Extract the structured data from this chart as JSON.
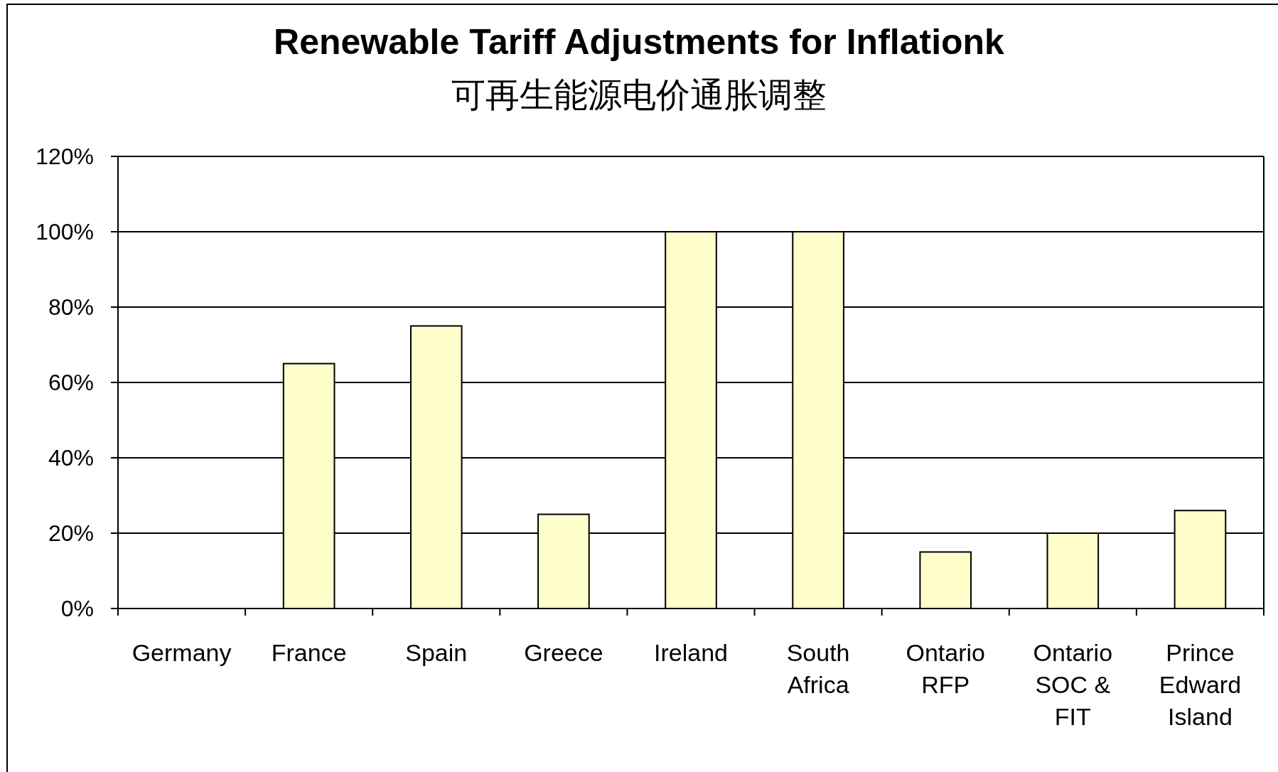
{
  "chart_data": {
    "type": "bar",
    "title": "Renewable Tariff Adjustments for Inflationk",
    "subtitle": "可再生能源电价通胀调整",
    "categories": [
      "Germany",
      "France",
      "Spain",
      "Greece",
      "Ireland",
      "South Africa",
      "Ontario RFP",
      "Ontario SOC & FIT",
      "Prince Edward Island"
    ],
    "values": [
      0,
      65,
      75,
      25,
      100,
      100,
      15,
      20,
      26
    ],
    "color": "#ffffcc",
    "ylim": [
      0,
      120
    ],
    "yticks": [
      {
        "value": 0,
        "label": "0%"
      },
      {
        "value": 20,
        "label": "20%"
      },
      {
        "value": 40,
        "label": "40%"
      },
      {
        "value": 60,
        "label": "60%"
      },
      {
        "value": 80,
        "label": "80%"
      },
      {
        "value": 100,
        "label": "100%"
      },
      {
        "value": 120,
        "label": "120%"
      }
    ],
    "grid": "y"
  }
}
